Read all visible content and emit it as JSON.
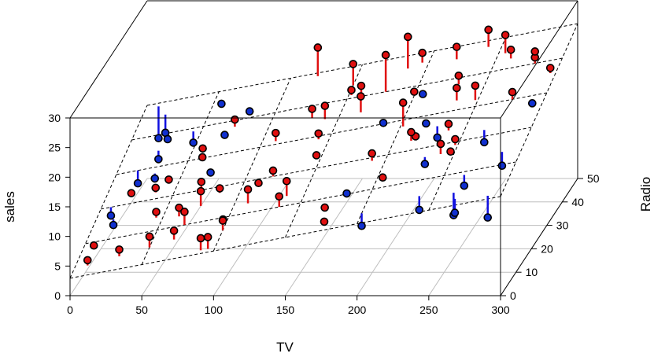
{
  "chart_data": {
    "type": "scatter3d",
    "title": "",
    "xlabel": "TV",
    "ylabel": "Radio",
    "zlabel": "sales",
    "xlim": [
      0,
      300
    ],
    "ylim": [
      0,
      50
    ],
    "zlim": [
      0,
      30
    ],
    "x_ticks": [
      0,
      50,
      100,
      150,
      200,
      250,
      300
    ],
    "y_ticks": [
      0,
      10,
      20,
      30,
      40,
      50
    ],
    "z_ticks": [
      0,
      5,
      10,
      15,
      20,
      25,
      30
    ],
    "regression_plane": {
      "intercept": 2.94,
      "tv_coef": 0.046,
      "radio_coef": 0.188
    },
    "grid": "floor",
    "colors": {
      "above_plane_residual": "#e01010",
      "below_plane_residual": "#1010e0",
      "point_above": "#e01010",
      "point_below": "#1030d0",
      "box": "#000000",
      "grid": "#bdbdbd"
    },
    "points": [
      [
        230,
        38,
        22.1
      ],
      [
        44,
        39,
        10.4
      ],
      [
        17,
        46,
        9.3
      ],
      [
        152,
        41,
        18.5
      ],
      [
        181,
        11,
        12.9
      ],
      [
        9,
        49,
        7.2
      ],
      [
        57,
        33,
        11.8
      ],
      [
        120,
        20,
        13.2
      ],
      [
        9,
        3,
        4.8
      ],
      [
        200,
        3,
        10.6
      ],
      [
        66,
        6,
        8.6
      ],
      [
        215,
        24,
        17.4
      ],
      [
        24,
        35,
        9.2
      ],
      [
        98,
        8,
        9.7
      ],
      [
        205,
        38,
        19.0
      ],
      [
        195,
        47,
        22.4
      ],
      [
        68,
        37,
        12.5
      ],
      [
        281,
        40,
        24.4
      ],
      [
        70,
        20,
        11.3
      ],
      [
        147,
        23,
        14.6
      ],
      [
        218,
        28,
        18.0
      ],
      [
        238,
        5,
        12.5
      ],
      [
        13,
        16,
        5.6
      ],
      [
        229,
        17,
        15.5
      ],
      [
        62,
        13,
        9.7
      ],
      [
        263,
        4,
        12.0
      ],
      [
        142,
        29,
        15.9
      ],
      [
        240,
        17,
        18.9
      ],
      [
        248,
        19,
        18.9
      ],
      [
        70,
        26,
        10.5
      ],
      [
        292,
        28,
        21.4
      ],
      [
        112,
        18,
        11.9
      ],
      [
        266,
        2,
        13.2
      ],
      [
        95,
        1,
        9.5
      ],
      [
        290,
        1,
        12.8
      ],
      [
        228,
        26,
        16.4
      ],
      [
        74,
        38,
        14.7
      ],
      [
        43,
        24,
        10.1
      ],
      [
        202,
        28,
        21.5
      ],
      [
        199,
        38,
        19.4
      ],
      [
        213,
        23,
        18.5
      ],
      [
        265,
        22,
        17.2
      ],
      [
        177,
        40,
        24.8
      ],
      [
        185,
        31,
        16.9
      ],
      [
        130,
        36,
        17.3
      ],
      [
        7,
        20,
        5.6
      ],
      [
        220,
        46,
        23.8
      ],
      [
        100,
        6,
        10.3
      ],
      [
        238,
        24,
        19.5
      ],
      [
        137,
        13,
        14.2
      ],
      [
        25,
        40,
        10.6
      ],
      [
        281,
        40,
        25.4
      ],
      [
        75,
        15,
        11.7
      ],
      [
        36,
        22,
        9.5
      ],
      [
        161,
        39,
        20.0
      ],
      [
        18,
        23,
        8.2
      ],
      [
        286,
        14,
        16.4
      ],
      [
        50,
        5,
        8.0
      ],
      [
        150,
        44,
        21.7
      ],
      [
        135,
        10,
        12.8
      ],
      [
        261,
        43,
        24.5
      ],
      [
        29,
        28,
        8.7
      ],
      [
        276,
        30,
        22.5
      ],
      [
        69,
        10,
        10.2
      ],
      [
        248,
        16,
        18.0
      ],
      [
        90,
        1,
        9.3
      ],
      [
        165,
        35,
        19.8
      ],
      [
        186,
        46,
        25.5
      ],
      [
        8,
        8,
        5.3
      ],
      [
        296,
        36,
        24.2
      ],
      [
        120,
        49,
        22.5
      ],
      [
        248,
        32,
        22.8
      ],
      [
        110,
        13,
        12.8
      ],
      [
        240,
        48,
        25.9
      ],
      [
        234,
        33,
        22.0
      ],
      [
        60,
        30,
        11.5
      ],
      [
        30,
        4,
        6.2
      ],
      [
        85,
        18,
        11.0
      ],
      [
        170,
        7,
        12.1
      ],
      [
        45,
        14,
        8.6
      ],
      [
        255,
        45,
        26.2
      ],
      [
        205,
        12,
        15.2
      ],
      [
        175,
        2,
        11.7
      ],
      [
        140,
        35,
        18.2
      ],
      [
        80,
        42,
        14.5
      ],
      [
        265,
        9,
        15.0
      ],
      [
        190,
        19,
        16.5
      ],
      [
        110,
        31,
        15.2
      ],
      [
        55,
        47,
        13.8
      ],
      [
        15,
        30,
        7.1
      ]
    ]
  }
}
